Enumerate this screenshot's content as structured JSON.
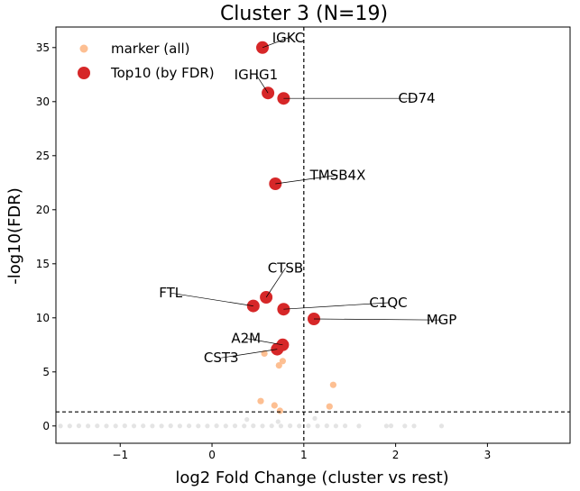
{
  "chart_data": {
    "type": "scatter",
    "title": "Cluster 3 (N=19)",
    "xlabel": "log2 Fold Change (cluster vs rest)",
    "ylabel": "-log10(FDR)",
    "xlim": [
      -1.7,
      3.9
    ],
    "ylim": [
      -1.6,
      36.9
    ],
    "xticks": [
      -1,
      0,
      1,
      2,
      3
    ],
    "xtick_labels": [
      "−1",
      "0",
      "1",
      "2",
      "3"
    ],
    "yticks": [
      0,
      5,
      10,
      15,
      20,
      25,
      30,
      35
    ],
    "ytick_labels": [
      "0",
      "5",
      "10",
      "15",
      "20",
      "25",
      "30",
      "35"
    ],
    "thresholds": {
      "x": 1.0,
      "y": 1.3
    },
    "legend": {
      "position": "top-left"
    },
    "series": [
      {
        "name": "",
        "color": "#d9d9d9",
        "points": [
          [
            -1.65,
            0.0
          ],
          [
            -1.55,
            0.0
          ],
          [
            -1.45,
            0.02
          ],
          [
            -1.35,
            0.0
          ],
          [
            -1.25,
            0.01
          ],
          [
            -1.15,
            0.0
          ],
          [
            -1.05,
            0.0
          ],
          [
            -0.95,
            0.02
          ],
          [
            -0.85,
            0.0
          ],
          [
            -0.75,
            0.01
          ],
          [
            -0.65,
            0.0
          ],
          [
            -0.55,
            0.0
          ],
          [
            -0.45,
            0.02
          ],
          [
            -0.35,
            0.0
          ],
          [
            -0.25,
            0.01
          ],
          [
            -0.15,
            0.0
          ],
          [
            -0.05,
            0.0
          ],
          [
            0.05,
            0.02
          ],
          [
            0.15,
            0.0
          ],
          [
            0.25,
            0.01
          ],
          [
            0.35,
            0.0
          ],
          [
            0.45,
            0.02
          ],
          [
            0.55,
            0.0
          ],
          [
            0.65,
            0.01
          ],
          [
            0.75,
            0.0
          ],
          [
            0.85,
            0.02
          ],
          [
            0.95,
            0.0
          ],
          [
            1.05,
            0.01
          ],
          [
            1.15,
            0.0
          ],
          [
            1.25,
            0.02
          ],
          [
            1.35,
            0.0
          ],
          [
            1.45,
            0.01
          ],
          [
            1.6,
            0.0
          ],
          [
            1.9,
            0.0
          ],
          [
            1.95,
            0.02
          ],
          [
            2.1,
            0.0
          ],
          [
            2.2,
            0.0
          ],
          [
            2.5,
            0.0
          ],
          [
            0.38,
            0.6
          ],
          [
            1.12,
            0.7
          ],
          [
            0.72,
            0.4
          ]
        ]
      },
      {
        "name": "marker (all)",
        "color": "#fdbf92",
        "points": [
          [
            0.53,
            2.3
          ],
          [
            0.68,
            1.9
          ],
          [
            0.74,
            1.4
          ],
          [
            1.28,
            1.8
          ],
          [
            1.32,
            3.8
          ],
          [
            0.57,
            6.7
          ],
          [
            0.73,
            5.6
          ],
          [
            0.77,
            6.0
          ],
          [
            0.71,
            7.2
          ]
        ]
      },
      {
        "name": "Top10 (by FDR)",
        "color": "#d62728",
        "points": [
          [
            0.55,
            35.0
          ],
          [
            0.61,
            30.8
          ],
          [
            0.78,
            30.3
          ],
          [
            0.69,
            22.4
          ],
          [
            0.59,
            11.9
          ],
          [
            0.45,
            11.1
          ],
          [
            0.78,
            10.8
          ],
          [
            1.11,
            9.9
          ],
          [
            0.77,
            7.5
          ],
          [
            0.71,
            7.1
          ]
        ]
      }
    ],
    "annotations": [
      {
        "text": "IGKC",
        "x": 0.55,
        "y": 35.0,
        "tx": 0.83,
        "ty": 35.9
      },
      {
        "text": "IGHG1",
        "x": 0.61,
        "y": 30.8,
        "tx": 0.48,
        "ty": 32.5
      },
      {
        "text": "CD74",
        "x": 0.78,
        "y": 30.3,
        "tx": 2.23,
        "ty": 30.3
      },
      {
        "text": "TMSB4X",
        "x": 0.69,
        "y": 22.4,
        "tx": 1.37,
        "ty": 23.2
      },
      {
        "text": "CTSB",
        "x": 0.59,
        "y": 11.9,
        "tx": 0.8,
        "ty": 14.6
      },
      {
        "text": "FTL",
        "x": 0.45,
        "y": 11.1,
        "tx": -0.45,
        "ty": 12.3
      },
      {
        "text": "C1QC",
        "x": 0.78,
        "y": 10.8,
        "tx": 1.92,
        "ty": 11.4
      },
      {
        "text": "MGP",
        "x": 1.11,
        "y": 9.9,
        "tx": 2.5,
        "ty": 9.8
      },
      {
        "text": "A2M",
        "x": 0.77,
        "y": 7.5,
        "tx": 0.37,
        "ty": 8.1
      },
      {
        "text": "CST3",
        "x": 0.71,
        "y": 7.1,
        "tx": 0.1,
        "ty": 6.3
      }
    ]
  }
}
